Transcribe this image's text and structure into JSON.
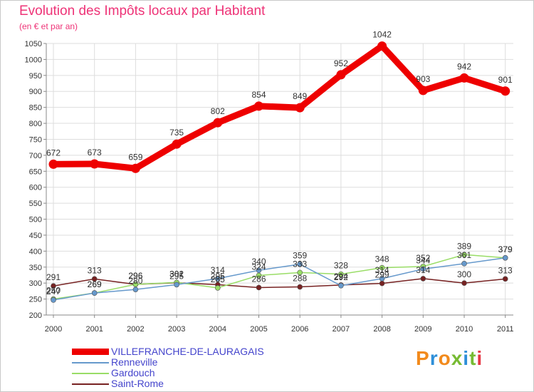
{
  "chart_data": {
    "type": "line",
    "title": "Evolution des Impôts locaux par Habitant",
    "subtitle": "(en € et par an)",
    "x": [
      "2000",
      "2001",
      "2002",
      "2003",
      "2004",
      "2005",
      "2006",
      "2007",
      "2008",
      "2009",
      "2010",
      "2011"
    ],
    "ylim": [
      200,
      1050
    ],
    "yticks": [
      200,
      250,
      300,
      350,
      400,
      450,
      500,
      550,
      600,
      650,
      700,
      750,
      800,
      850,
      900,
      950,
      1000,
      1050
    ],
    "grid": true,
    "legend_position": "bottom-left",
    "series": [
      {
        "name": "VILLEFRANCHE-DE-LAURAGAIS",
        "color": "#ee0000",
        "values": [
          672,
          673,
          659,
          735,
          802,
          854,
          849,
          952,
          1042,
          903,
          942,
          901
        ]
      },
      {
        "name": "Renneville",
        "color": "#6699cc",
        "values": [
          247,
          269,
          280,
          295,
          314,
          340,
          359,
          292,
          314,
          344,
          361,
          379
        ]
      },
      {
        "name": "Gardouch",
        "color": "#99dd66",
        "values": [
          250,
          269,
          296,
          302,
          285,
          324,
          333,
          328,
          348,
          352,
          389,
          379
        ]
      },
      {
        "name": "Saint-Rome",
        "color": "#772222",
        "values": [
          291,
          313,
          296,
          301,
          295,
          286,
          288,
          294,
          299,
          314,
          300,
          313
        ]
      }
    ]
  },
  "brand": {
    "letters": [
      "P",
      "r",
      "o",
      "x",
      "i",
      "t",
      "i"
    ]
  }
}
